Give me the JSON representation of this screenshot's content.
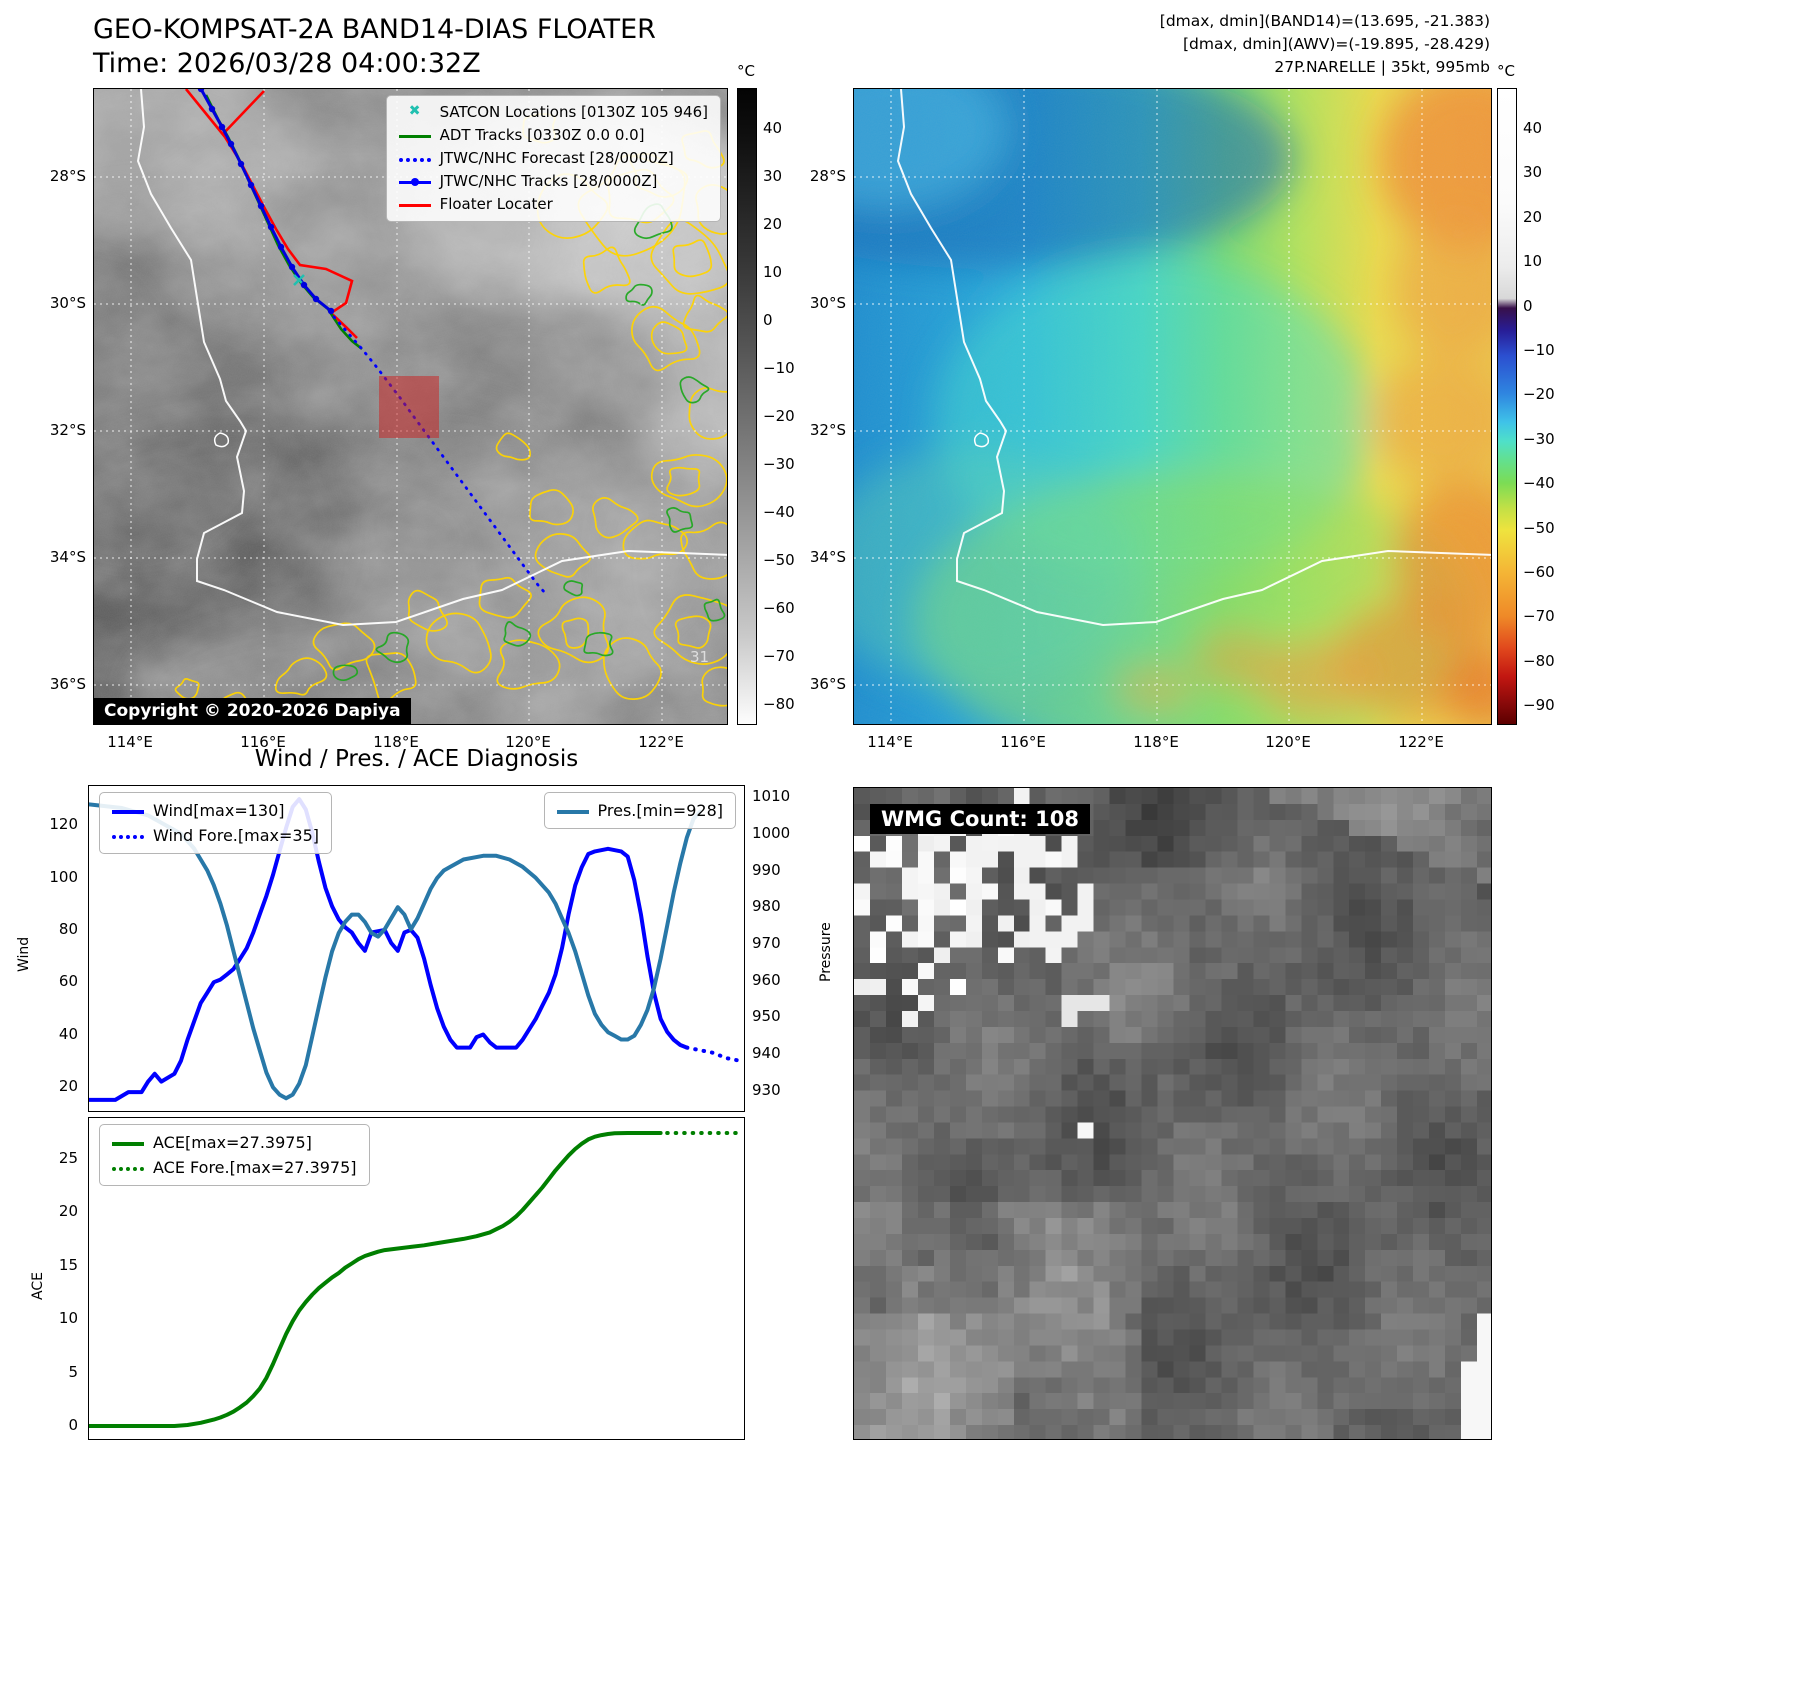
{
  "band14_panel": {
    "title": "GEO-KOMPSAT-2A BAND14-DIAS FLOATER",
    "subtitle": "Time: 2026/03/28 04:00:32Z",
    "colorbar_unit": "°C",
    "colorbar_ticks": [
      "40",
      "30",
      "20",
      "10",
      "0",
      "−10",
      "−20",
      "−30",
      "−40",
      "−50",
      "−60",
      "−70",
      "−80"
    ],
    "lat_ticks": [
      "28°S",
      "30°S",
      "32°S",
      "34°S",
      "36°S"
    ],
    "lon_ticks": [
      "114°E",
      "116°E",
      "118°E",
      "120°E",
      "122°E"
    ],
    "legend": [
      {
        "label": "SATCON Locations [0130Z 105 946]",
        "color": "#20c0b0",
        "marker": "x"
      },
      {
        "label": "ADT Tracks [0330Z 0.0 0.0]",
        "color": "#008000",
        "marker": "solid"
      },
      {
        "label": "JTWC/NHC Forecast [28/0000Z]",
        "color": "#0000ff",
        "marker": "dotted"
      },
      {
        "label": "JTWC/NHC Tracks [28/0000Z]",
        "color": "#0000ff",
        "marker": "solid-dot"
      },
      {
        "label": "Floater Locater",
        "color": "#ff0000",
        "marker": "solid"
      }
    ],
    "copyright": "Copyright © 2020-2026 Dapiya",
    "contour_label": "31"
  },
  "awv_panel": {
    "annotation_lines": [
      "[dmax, dmin](BAND14)=(13.695, -21.383)",
      "[dmax, dmin](AWV)=(-19.895, -28.429)",
      "27P.NARELLE | 35kt, 995mb"
    ],
    "colorbar_unit": "°C",
    "colorbar_ticks": [
      "40",
      "30",
      "20",
      "10",
      "0",
      "−10",
      "−20",
      "−30",
      "−40",
      "−50",
      "−60",
      "−70",
      "−80",
      "−90"
    ],
    "lat_ticks": [
      "28°S",
      "30°S",
      "32°S",
      "34°S",
      "36°S"
    ],
    "lon_ticks": [
      "114°E",
      "116°E",
      "118°E",
      "120°E",
      "122°E"
    ]
  },
  "diagnosis_panel": {
    "title": "Wind / Pres. / ACE Diagnosis",
    "wind_ylabel": "Wind",
    "pressure_ylabel": "Pressure",
    "ace_ylabel": "ACE",
    "wind_ticks": [
      "120",
      "100",
      "80",
      "60",
      "40",
      "20"
    ],
    "pressure_ticks": [
      "1010",
      "1000",
      "990",
      "980",
      "970",
      "960",
      "950",
      "940",
      "930"
    ],
    "ace_ticks": [
      "25",
      "20",
      "15",
      "10",
      "5",
      "0"
    ],
    "wind_legend": [
      {
        "label": "Wind[max=130]",
        "color": "#0000ff",
        "style": "solid"
      },
      {
        "label": "Wind Fore.[max=35]",
        "color": "#0000ff",
        "style": "dotted"
      }
    ],
    "pres_legend": [
      {
        "label": "Pres.[min=928]",
        "color": "#2878a8",
        "style": "solid"
      }
    ],
    "ace_legend": [
      {
        "label": "ACE[max=27.3975]",
        "color": "#007f00",
        "style": "solid"
      },
      {
        "label": "ACE Fore.[max=27.3975]",
        "color": "#007f00",
        "style": "dotted"
      }
    ]
  },
  "wmg_panel": {
    "count_label": "WMG Count: 108"
  },
  "chart_data": [
    {
      "type": "line",
      "title": "Wind / Pres. / ACE Diagnosis — wind & pressure subplot",
      "xlabel": "",
      "ylabel": "Wind",
      "y2label": "Pressure",
      "xlim": [
        0,
        100
      ],
      "ylim": [
        10,
        135
      ],
      "y2lim": [
        924,
        1013
      ],
      "grid": false,
      "legend_position": "upper-left / upper-right",
      "series": [
        {
          "name": "Wind[max=130]",
          "axis": "y",
          "color": "#0000ff",
          "style": "solid",
          "points": [
            [
              0,
              15
            ],
            [
              4,
              15
            ],
            [
              6,
              18
            ],
            [
              8,
              18
            ],
            [
              9,
              22
            ],
            [
              10,
              25
            ],
            [
              11,
              22
            ],
            [
              13,
              25
            ],
            [
              14,
              30
            ],
            [
              15,
              38
            ],
            [
              16,
              45
            ],
            [
              17,
              52
            ],
            [
              18,
              56
            ],
            [
              19,
              60
            ],
            [
              20,
              61
            ],
            [
              21,
              63
            ],
            [
              22,
              65
            ],
            [
              23,
              69
            ],
            [
              24,
              73
            ],
            [
              25,
              79
            ],
            [
              26,
              86
            ],
            [
              27,
              93
            ],
            [
              28,
              101
            ],
            [
              29,
              110
            ],
            [
              30,
              119
            ],
            [
              31,
              127
            ],
            [
              32,
              130
            ],
            [
              33,
              126
            ],
            [
              34,
              117
            ],
            [
              35,
              106
            ],
            [
              36,
              96
            ],
            [
              37,
              89
            ],
            [
              38,
              84
            ],
            [
              39,
              81
            ],
            [
              40,
              79
            ],
            [
              41,
              75
            ],
            [
              42,
              72
            ],
            [
              43,
              79
            ],
            [
              45,
              80
            ],
            [
              46,
              75
            ],
            [
              47,
              72
            ],
            [
              48,
              79
            ],
            [
              49,
              80
            ],
            [
              50,
              77
            ],
            [
              51,
              69
            ],
            [
              52,
              59
            ],
            [
              53,
              50
            ],
            [
              54,
              43
            ],
            [
              55,
              38
            ],
            [
              56,
              35
            ],
            [
              58,
              35
            ],
            [
              59,
              39
            ],
            [
              60,
              40
            ],
            [
              61,
              37
            ],
            [
              62,
              35
            ],
            [
              65,
              35
            ],
            [
              66,
              38
            ],
            [
              67,
              42
            ],
            [
              68,
              46
            ],
            [
              69,
              51
            ],
            [
              70,
              56
            ],
            [
              71,
              63
            ],
            [
              72,
              73
            ],
            [
              73,
              86
            ],
            [
              74,
              97
            ],
            [
              75,
              104
            ],
            [
              76,
              109
            ],
            [
              77,
              110
            ],
            [
              79,
              111
            ],
            [
              81,
              110
            ],
            [
              82,
              108
            ],
            [
              83,
              99
            ],
            [
              84,
              86
            ],
            [
              85,
              70
            ],
            [
              86,
              56
            ],
            [
              87,
              46
            ],
            [
              88,
              41
            ],
            [
              89,
              38
            ],
            [
              90,
              36
            ],
            [
              91,
              35
            ]
          ]
        },
        {
          "name": "Wind Fore.[max=35]",
          "axis": "y",
          "color": "#0000ff",
          "style": "dotted",
          "points": [
            [
              91,
              35
            ],
            [
              93,
              34
            ],
            [
              95,
              33
            ],
            [
              97,
              31
            ],
            [
              99,
              30
            ]
          ]
        },
        {
          "name": "Pres.[min=928]",
          "axis": "y2",
          "color": "#2878a8",
          "style": "solid",
          "points": [
            [
              0,
              1008
            ],
            [
              5,
              1007
            ],
            [
              9,
              1005
            ],
            [
              12,
              1002
            ],
            [
              14,
              1000
            ],
            [
              15,
              998
            ],
            [
              16,
              996
            ],
            [
              17,
              993
            ],
            [
              18,
              990
            ],
            [
              19,
              986
            ],
            [
              20,
              981
            ],
            [
              21,
              975
            ],
            [
              22,
              968
            ],
            [
              23,
              961
            ],
            [
              24,
              954
            ],
            [
              25,
              947
            ],
            [
              26,
              941
            ],
            [
              27,
              935
            ],
            [
              28,
              931
            ],
            [
              29,
              929
            ],
            [
              30,
              928
            ],
            [
              31,
              929
            ],
            [
              32,
              932
            ],
            [
              33,
              937
            ],
            [
              34,
              945
            ],
            [
              35,
              953
            ],
            [
              36,
              961
            ],
            [
              37,
              968
            ],
            [
              38,
              973
            ],
            [
              39,
              976
            ],
            [
              40,
              978
            ],
            [
              41,
              978
            ],
            [
              42,
              976
            ],
            [
              43,
              973
            ],
            [
              44,
              972
            ],
            [
              45,
              974
            ],
            [
              46,
              977
            ],
            [
              47,
              980
            ],
            [
              48,
              978
            ],
            [
              49,
              974
            ],
            [
              50,
              977
            ],
            [
              51,
              981
            ],
            [
              52,
              985
            ],
            [
              53,
              988
            ],
            [
              54,
              990
            ],
            [
              55,
              991
            ],
            [
              57,
              993
            ],
            [
              60,
              994
            ],
            [
              62,
              994
            ],
            [
              64,
              993
            ],
            [
              66,
              991
            ],
            [
              68,
              988
            ],
            [
              70,
              984
            ],
            [
              71,
              981
            ],
            [
              72,
              977
            ],
            [
              73,
              973
            ],
            [
              74,
              968
            ],
            [
              75,
              962
            ],
            [
              76,
              956
            ],
            [
              77,
              951
            ],
            [
              78,
              948
            ],
            [
              79,
              946
            ],
            [
              80,
              945
            ],
            [
              81,
              944
            ],
            [
              82,
              944
            ],
            [
              83,
              945
            ],
            [
              84,
              948
            ],
            [
              85,
              952
            ],
            [
              86,
              958
            ],
            [
              87,
              966
            ],
            [
              88,
              975
            ],
            [
              89,
              984
            ],
            [
              90,
              992
            ],
            [
              91,
              999
            ],
            [
              92,
              1004
            ],
            [
              93,
              1006
            ]
          ]
        }
      ]
    },
    {
      "type": "line",
      "title": "Wind / Pres. / ACE Diagnosis — ACE subplot",
      "xlabel": "",
      "ylabel": "ACE",
      "xlim": [
        0,
        100
      ],
      "ylim": [
        -1.4,
        28.8
      ],
      "grid": false,
      "legend_position": "upper-left",
      "series": [
        {
          "name": "ACE[max=27.3975]",
          "axis": "y",
          "color": "#007f00",
          "style": "solid",
          "points": [
            [
              0,
              0
            ],
            [
              5,
              0
            ],
            [
              10,
              0
            ],
            [
              13,
              0
            ],
            [
              15,
              0.1
            ],
            [
              17,
              0.3
            ],
            [
              18,
              0.45
            ],
            [
              19,
              0.6
            ],
            [
              20,
              0.8
            ],
            [
              21,
              1.05
            ],
            [
              22,
              1.35
            ],
            [
              23,
              1.75
            ],
            [
              24,
              2.2
            ],
            [
              25,
              2.8
            ],
            [
              26,
              3.5
            ],
            [
              27,
              4.5
            ],
            [
              28,
              5.8
            ],
            [
              29,
              7.2
            ],
            [
              30,
              8.6
            ],
            [
              31,
              9.8
            ],
            [
              32,
              10.8
            ],
            [
              33,
              11.6
            ],
            [
              34,
              12.3
            ],
            [
              35,
              12.9
            ],
            [
              36,
              13.4
            ],
            [
              37,
              13.9
            ],
            [
              38,
              14.3
            ],
            [
              39,
              14.8
            ],
            [
              40,
              15.2
            ],
            [
              41,
              15.6
            ],
            [
              42,
              15.9
            ],
            [
              43,
              16.1
            ],
            [
              44,
              16.3
            ],
            [
              45,
              16.45
            ],
            [
              47,
              16.6
            ],
            [
              49,
              16.75
            ],
            [
              51,
              16.9
            ],
            [
              53,
              17.1
            ],
            [
              55,
              17.3
            ],
            [
              57,
              17.5
            ],
            [
              59,
              17.75
            ],
            [
              61,
              18.1
            ],
            [
              62,
              18.4
            ],
            [
              63,
              18.7
            ],
            [
              64,
              19.1
            ],
            [
              65,
              19.6
            ],
            [
              66,
              20.2
            ],
            [
              67,
              20.9
            ],
            [
              68,
              21.6
            ],
            [
              69,
              22.3
            ],
            [
              70,
              23.1
            ],
            [
              71,
              23.9
            ],
            [
              72,
              24.6
            ],
            [
              73,
              25.3
            ],
            [
              74,
              25.9
            ],
            [
              75,
              26.4
            ],
            [
              76,
              26.8
            ],
            [
              77,
              27.05
            ],
            [
              78,
              27.2
            ],
            [
              79,
              27.3
            ],
            [
              80,
              27.37
            ],
            [
              82,
              27.4
            ],
            [
              85,
              27.4
            ],
            [
              87,
              27.4
            ]
          ]
        },
        {
          "name": "ACE Fore.[max=27.3975]",
          "axis": "y",
          "color": "#007f00",
          "style": "dotted",
          "points": [
            [
              88,
              27.4
            ],
            [
              91,
              27.4
            ],
            [
              94,
              27.4
            ],
            [
              97,
              27.4
            ],
            [
              99,
              27.4
            ]
          ]
        }
      ]
    }
  ]
}
